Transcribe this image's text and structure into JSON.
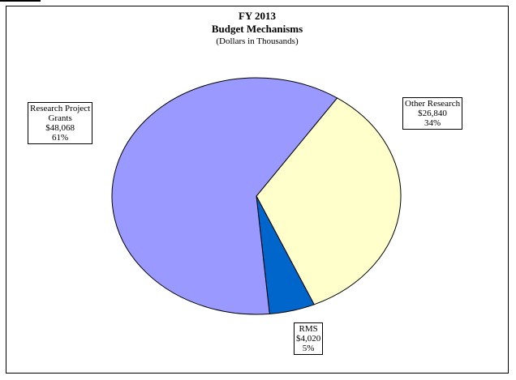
{
  "chart_data": {
    "type": "pie",
    "title": "FY 2013",
    "subtitle": "Budget Mechanisms",
    "units_note": "(Dollars in Thousands)",
    "slices": [
      {
        "name": "Other Research",
        "value_label": "$26,840",
        "pct_label": "34%",
        "value": 26840,
        "percent": 34,
        "color": "#ffffcc"
      },
      {
        "name": "RMS",
        "value_label": "$4,020",
        "pct_label": "5%",
        "value": 4020,
        "percent": 5,
        "color": "#0066cc"
      },
      {
        "name": "Research Project Grants",
        "value_label": "$48,068",
        "pct_label": "61%",
        "value": 48068,
        "percent": 61,
        "color": "#9999ff"
      }
    ]
  },
  "labels": {
    "rpg_line1": "Research Project",
    "rpg_line2": "Grants",
    "rpg_value": "$48,068",
    "rpg_pct": "61%",
    "other_line1": "Other Research",
    "other_value": "$26,840",
    "other_pct": "34%",
    "rms_line1": "RMS",
    "rms_value": "$4,020",
    "rms_pct": "5%"
  }
}
